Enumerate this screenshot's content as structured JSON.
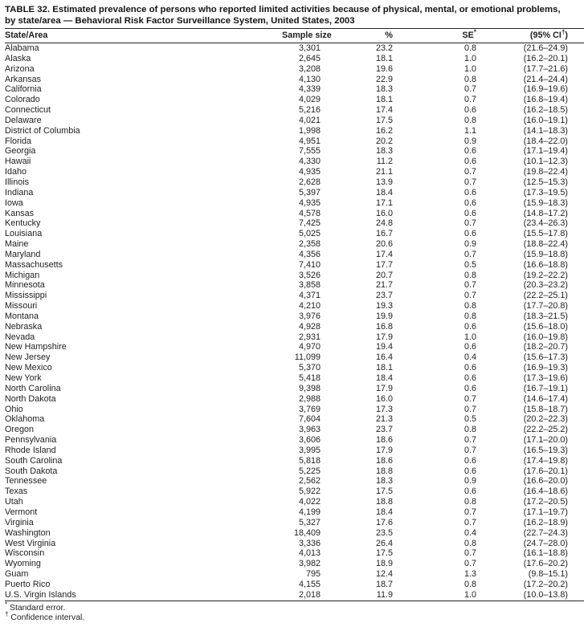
{
  "title": {
    "line1": "TABLE 32. Estimated prevalence of persons who reported limited activities because of physical, mental, or emotional problems,",
    "line2": "by state/area — Behavioral Risk Factor Surveillance System, United States, 2003"
  },
  "columns": {
    "state": "State/Area",
    "sample": "Sample size",
    "percent": "%",
    "se_label": "SE",
    "se_marker": "*",
    "ci_prefix": "(95% CI",
    "ci_marker": "†",
    "ci_suffix": ")"
  },
  "rows": [
    {
      "state": "Alabama",
      "sample": "3,301",
      "pct": "23.2",
      "se": "0.8",
      "ci": "(21.6–24.9)"
    },
    {
      "state": "Alaska",
      "sample": "2,645",
      "pct": "18.1",
      "se": "1.0",
      "ci": "(16.2–20.1)"
    },
    {
      "state": "Arizona",
      "sample": "3,208",
      "pct": "19.6",
      "se": "1.0",
      "ci": "(17.7–21.6)"
    },
    {
      "state": "Arkansas",
      "sample": "4,130",
      "pct": "22.9",
      "se": "0.8",
      "ci": "(21.4–24.4)"
    },
    {
      "state": "California",
      "sample": "4,339",
      "pct": "18.3",
      "se": "0.7",
      "ci": "(16.9–19.6)"
    },
    {
      "state": "Colorado",
      "sample": "4,029",
      "pct": "18.1",
      "se": "0.7",
      "ci": "(16.8–19.4)"
    },
    {
      "state": "Connecticut",
      "sample": "5,216",
      "pct": "17.4",
      "se": "0.6",
      "ci": "(16.2–18.5)"
    },
    {
      "state": "Delaware",
      "sample": "4,021",
      "pct": "17.5",
      "se": "0.8",
      "ci": "(16.0–19.1)"
    },
    {
      "state": "District of Columbia",
      "sample": "1,998",
      "pct": "16.2",
      "se": "1.1",
      "ci": "(14.1–18.3)"
    },
    {
      "state": "Florida",
      "sample": "4,951",
      "pct": "20.2",
      "se": "0.9",
      "ci": "(18.4–22.0)"
    },
    {
      "state": "Georgia",
      "sample": "7,555",
      "pct": "18.3",
      "se": "0.6",
      "ci": "(17.1–19.4)"
    },
    {
      "state": "Hawaii",
      "sample": "4,330",
      "pct": "11.2",
      "se": "0.6",
      "ci": "(10.1–12.3)"
    },
    {
      "state": "Idaho",
      "sample": "4,935",
      "pct": "21.1",
      "se": "0.7",
      "ci": "(19.8–22.4)"
    },
    {
      "state": "Illinois",
      "sample": "2,628",
      "pct": "13.9",
      "se": "0.7",
      "ci": "(12.5–15.3)"
    },
    {
      "state": "Indiana",
      "sample": "5,397",
      "pct": "18.4",
      "se": "0.6",
      "ci": "(17.3–19.5)"
    },
    {
      "state": "Iowa",
      "sample": "4,935",
      "pct": "17.1",
      "se": "0.6",
      "ci": "(15.9–18.3)"
    },
    {
      "state": "Kansas",
      "sample": "4,578",
      "pct": "16.0",
      "se": "0.6",
      "ci": "(14.8–17.2)"
    },
    {
      "state": "Kentucky",
      "sample": "7,425",
      "pct": "24.8",
      "se": "0.7",
      "ci": "(23.4–26.3)"
    },
    {
      "state": "Louisiana",
      "sample": "5,025",
      "pct": "16.7",
      "se": "0.6",
      "ci": "(15.5–17.8)"
    },
    {
      "state": "Maine",
      "sample": "2,358",
      "pct": "20.6",
      "se": "0.9",
      "ci": "(18.8–22.4)"
    },
    {
      "state": "Maryland",
      "sample": "4,356",
      "pct": "17.4",
      "se": "0.7",
      "ci": "(15.9–18.8)"
    },
    {
      "state": "Massachusetts",
      "sample": "7,410",
      "pct": "17.7",
      "se": "0.5",
      "ci": "(16.6–18.8)"
    },
    {
      "state": "Michigan",
      "sample": "3,526",
      "pct": "20.7",
      "se": "0.8",
      "ci": "(19.2–22.2)"
    },
    {
      "state": "Minnesota",
      "sample": "3,858",
      "pct": "21.7",
      "se": "0.7",
      "ci": "(20.3–23.2)"
    },
    {
      "state": "Mississippi",
      "sample": "4,371",
      "pct": "23.7",
      "se": "0.7",
      "ci": "(22.2–25.1)"
    },
    {
      "state": "Missouri",
      "sample": "4,210",
      "pct": "19.3",
      "se": "0.8",
      "ci": "(17.7–20.8)"
    },
    {
      "state": "Montana",
      "sample": "3,976",
      "pct": "19.9",
      "se": "0.8",
      "ci": "(18.3–21.5)"
    },
    {
      "state": "Nebraska",
      "sample": "4,928",
      "pct": "16.8",
      "se": "0.6",
      "ci": "(15.6–18.0)"
    },
    {
      "state": "Nevada",
      "sample": "2,931",
      "pct": "17.9",
      "se": "1.0",
      "ci": "(16.0–19.8)"
    },
    {
      "state": "New Hampshire",
      "sample": "4,970",
      "pct": "19.4",
      "se": "0.6",
      "ci": "(18.2–20.7)"
    },
    {
      "state": "New Jersey",
      "sample": "11,099",
      "pct": "16.4",
      "se": "0.4",
      "ci": "(15.6–17.3)"
    },
    {
      "state": "New Mexico",
      "sample": "5,370",
      "pct": "18.1",
      "se": "0.6",
      "ci": "(16.9–19.3)"
    },
    {
      "state": "New York",
      "sample": "5,418",
      "pct": "18.4",
      "se": "0.6",
      "ci": "(17.3–19.6)"
    },
    {
      "state": "North Carolina",
      "sample": "9,398",
      "pct": "17.9",
      "se": "0.6",
      "ci": "(16.7–19.1)"
    },
    {
      "state": "North Dakota",
      "sample": "2,988",
      "pct": "16.0",
      "se": "0.7",
      "ci": "(14.6–17.4)"
    },
    {
      "state": "Ohio",
      "sample": "3,769",
      "pct": "17.3",
      "se": "0.7",
      "ci": "(15.8–18.7)"
    },
    {
      "state": "Oklahoma",
      "sample": "7,604",
      "pct": "21.3",
      "se": "0.5",
      "ci": "(20.2–22.3)"
    },
    {
      "state": "Oregon",
      "sample": "3,963",
      "pct": "23.7",
      "se": "0.8",
      "ci": "(22.2–25.2)"
    },
    {
      "state": "Pennsylvania",
      "sample": "3,606",
      "pct": "18.6",
      "se": "0.7",
      "ci": "(17.1–20.0)"
    },
    {
      "state": "Rhode Island",
      "sample": "3,995",
      "pct": "17.9",
      "se": "0.7",
      "ci": "(16.5–19.3)"
    },
    {
      "state": "South Carolina",
      "sample": "5,818",
      "pct": "18.6",
      "se": "0.6",
      "ci": "(17.4–19.8)"
    },
    {
      "state": "South Dakota",
      "sample": "5,225",
      "pct": "18.8",
      "se": "0.6",
      "ci": "(17.6–20.1)"
    },
    {
      "state": "Tennessee",
      "sample": "2,562",
      "pct": "18.3",
      "se": "0.9",
      "ci": "(16.6–20.0)"
    },
    {
      "state": "Texas",
      "sample": "5,922",
      "pct": "17.5",
      "se": "0.6",
      "ci": "(16.4–18.6)"
    },
    {
      "state": "Utah",
      "sample": "4,022",
      "pct": "18.8",
      "se": "0.8",
      "ci": "(17.2–20.5)"
    },
    {
      "state": "Vermont",
      "sample": "4,199",
      "pct": "18.4",
      "se": "0.7",
      "ci": "(17.1–19.7)"
    },
    {
      "state": "Virginia",
      "sample": "5,327",
      "pct": "17.6",
      "se": "0.7",
      "ci": "(16.2–18.9)"
    },
    {
      "state": "Washington",
      "sample": "18,409",
      "pct": "23.5",
      "se": "0.4",
      "ci": "(22.7–24.3)"
    },
    {
      "state": "West Virginia",
      "sample": "3,336",
      "pct": "26.4",
      "se": "0.8",
      "ci": "(24.7–28.0)"
    },
    {
      "state": "Wisconsin",
      "sample": "4,013",
      "pct": "17.5",
      "se": "0.7",
      "ci": "(16.1–18.8)"
    },
    {
      "state": "Wyoming",
      "sample": "3,982",
      "pct": "18.9",
      "se": "0.7",
      "ci": "(17.6–20.2)"
    },
    {
      "state": "Guam",
      "sample": "795",
      "pct": "12.4",
      "se": "1.3",
      "ci": "(9.8–15.1)"
    },
    {
      "state": "Puerto Rico",
      "sample": "4,155",
      "pct": "18.7",
      "se": "0.8",
      "ci": "(17.2–20.2)"
    },
    {
      "state": "U.S. Virgin Islands",
      "sample": "2,018",
      "pct": "11.9",
      "se": "1.0",
      "ci": "(10.0–13.8)"
    }
  ],
  "footnotes": [
    {
      "marker": "*",
      "text": "Standard error."
    },
    {
      "marker": "†",
      "text": "Confidence interval."
    }
  ]
}
